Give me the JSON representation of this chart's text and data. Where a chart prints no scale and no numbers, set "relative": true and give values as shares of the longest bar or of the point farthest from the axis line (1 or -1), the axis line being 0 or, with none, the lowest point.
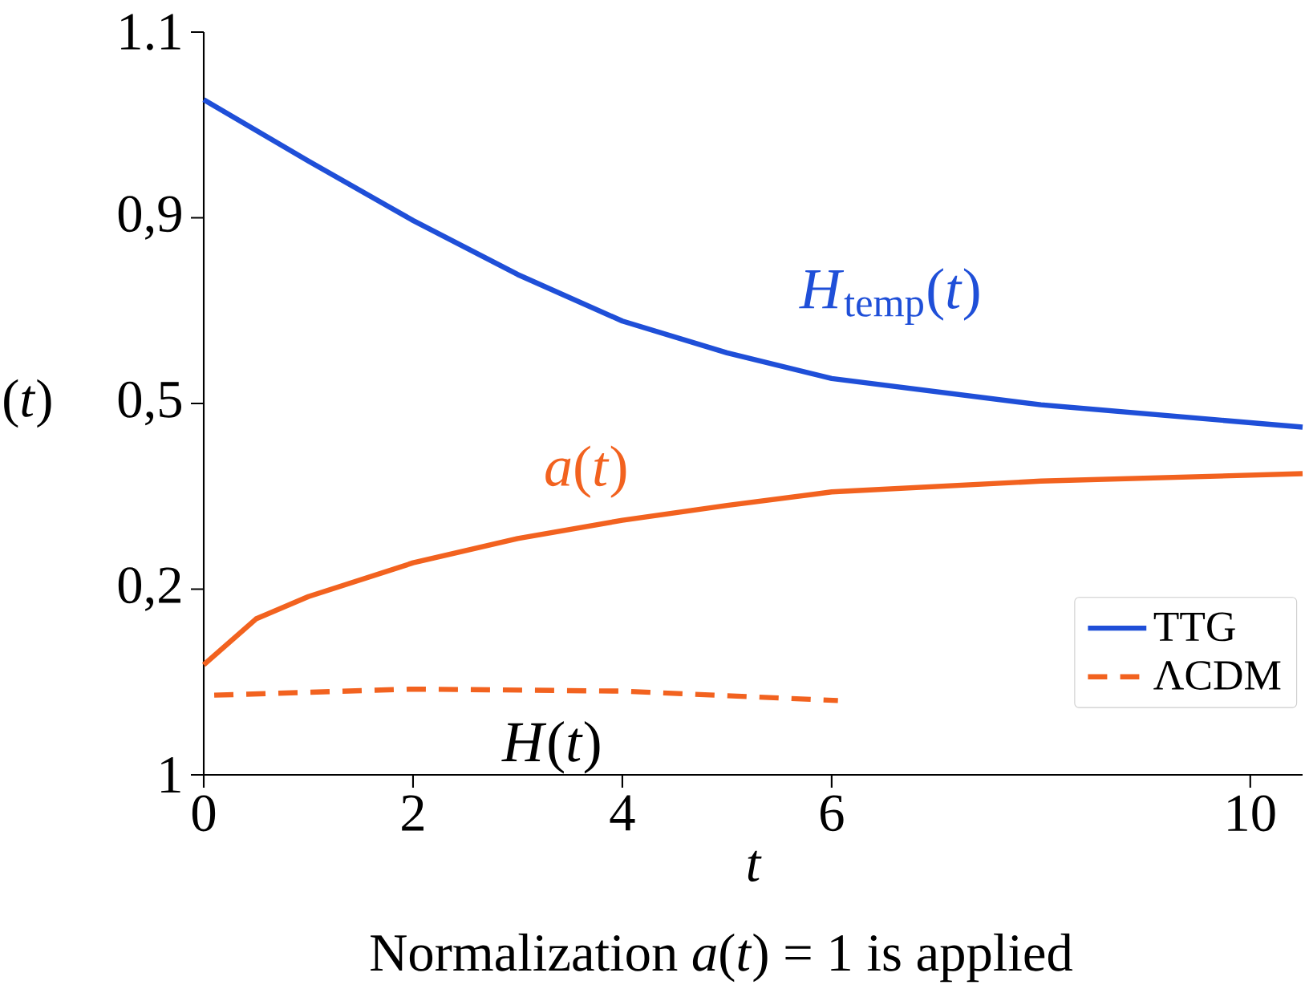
{
  "chart_data": {
    "type": "line",
    "relative": true,
    "ylabel": "(*t*)",
    "xlabel": "t",
    "annotations": [
      "*H*$_{temp}$(*t*)",
      "*a*(*t*)",
      "*H*(*t*)",
      "Normalization *a*(*t*) = 1 is applied",
      "1.1",
      "0,9",
      "0,5",
      "0,2",
      "1"
    ],
    "series": [
      {
        "name": "TTG",
        "color": "#1f4fd8",
        "line_style": "solid",
        "x": [
          0,
          1,
          2,
          3,
          4,
          5,
          6,
          8,
          10.5
        ],
        "values": [
          1,
          0.909,
          0.821,
          0.741,
          0.672,
          0.625,
          0.587,
          0.548,
          0.515
        ]
      },
      {
        "color": "#f2621f",
        "line_style": "solid",
        "x": [
          0,
          0.5,
          1,
          2,
          3,
          4,
          5,
          6,
          8,
          10.5
        ],
        "values": [
          0.163,
          0.231,
          0.264,
          0.314,
          0.35,
          0.377,
          0.399,
          0.419,
          0.435,
          0.446
        ]
      },
      {
        "name": "ΛCDM",
        "color": "#f2621f",
        "line_style": "dashed",
        "x": [
          0.1,
          2,
          4,
          6.06
        ],
        "values": [
          0.118,
          0.127,
          0.124,
          0.11
        ]
      }
    ],
    "xlim": [
      0,
      10.5
    ],
    "xticks": [
      0,
      2,
      4,
      6,
      10
    ],
    "grid": false,
    "legend": "bottom right",
    "marker": "none"
  }
}
